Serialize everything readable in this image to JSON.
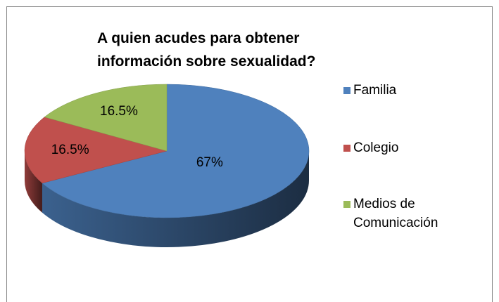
{
  "chart_data": {
    "type": "pie",
    "title": "A quien acudes para obtener información sobre sexualidad?",
    "categories": [
      "Familia",
      "Colegio",
      "Medios de Comunicación"
    ],
    "values": [
      67,
      16.5,
      16.5
    ],
    "value_labels": [
      "67%",
      "16.5%",
      "16.5%"
    ],
    "colors": [
      "#4f81bd",
      "#c0504d",
      "#9bbb59"
    ],
    "legend": "right"
  }
}
